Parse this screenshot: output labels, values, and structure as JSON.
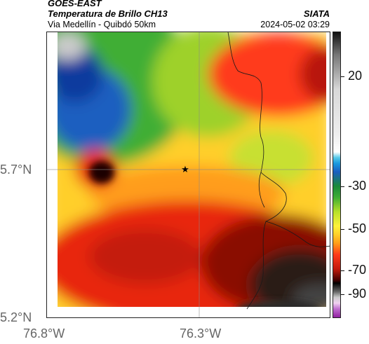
{
  "header": {
    "title_line1": "GOES-EAST",
    "title_line2": "Temperatura de Brillo CH13",
    "subtitle": "Via Medellín - Quibdó 50km",
    "organization": "SIATA",
    "datetime": "2024-05-02 03:29"
  },
  "axes": {
    "latitude_ticks": [
      "5.7°N",
      "5.2°N"
    ],
    "longitude_ticks": [
      "76.8°W",
      "76.3°W"
    ]
  },
  "colorbar": {
    "labels": [
      "20",
      "-30",
      "-50",
      "-70",
      "-90"
    ],
    "values": [
      20,
      -30,
      -50,
      -70,
      -90
    ],
    "range": [
      -95,
      40
    ],
    "units_hint": "brightness temperature (°C)"
  },
  "colors": {
    "hot_cloud_free": "#ff3a2a",
    "cold_tops": "#111111",
    "mid": "#ffd23a",
    "warm": "#4caf2a",
    "surface": "#0b3fb0",
    "outline": "#ffffff"
  },
  "map": {
    "marker_icon": "star-icon"
  }
}
